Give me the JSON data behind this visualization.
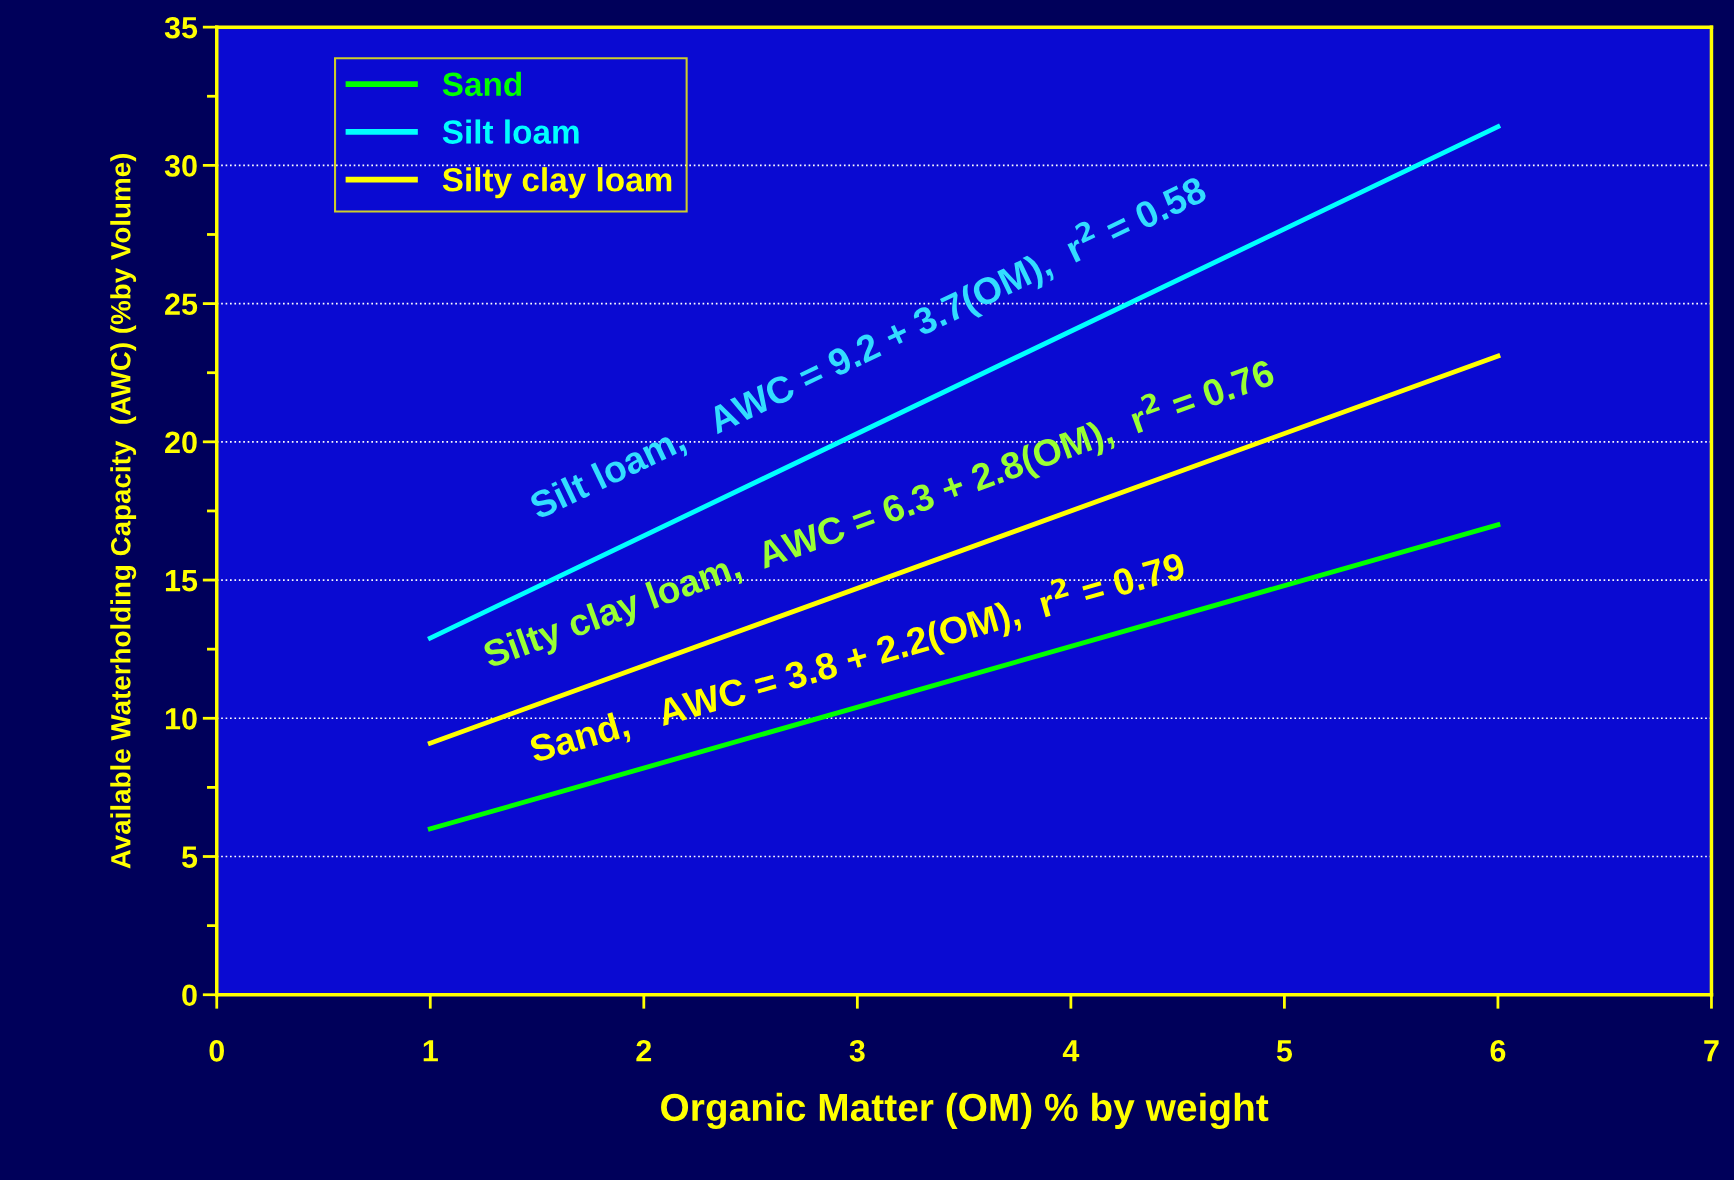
{
  "chart_data": {
    "type": "line",
    "xlabel": "Organic Matter (OM) % by weight",
    "ylabel": "Available Waterholding Capacity  (AWC) (%by Volume)",
    "x": [
      1,
      6
    ],
    "series": [
      {
        "name": "Sand",
        "color": "#00ff00",
        "values": [
          6,
          17
        ]
      },
      {
        "name": "Silt loam",
        "color": "#00ffff",
        "values": [
          12.9,
          31.4
        ]
      },
      {
        "name": "Silty clay loam",
        "color": "#ffff00",
        "values": [
          9.1,
          23.1
        ]
      }
    ],
    "xlim": [
      0,
      7
    ],
    "xticks": [
      0,
      1,
      2,
      3,
      4,
      5,
      6,
      7
    ],
    "ylim": [
      0,
      35
    ],
    "yticks": [
      0,
      5,
      10,
      15,
      20,
      25,
      30,
      35
    ],
    "grid": "y",
    "legend": "top left",
    "marker": "none",
    "line_style": "solid",
    "annotations": [
      "Silt loam,   AWC = 9.2 + 3.7(OM),  r$^{2}$ = 0.58",
      "Silty clay loam,  AWC = 6.3 + 2.8(OM),  r$^{2}$ = 0.76",
      "Sand,   AWC = 3.8 + 2.2(OM),  r$^{2}$ = 0.79"
    ]
  }
}
